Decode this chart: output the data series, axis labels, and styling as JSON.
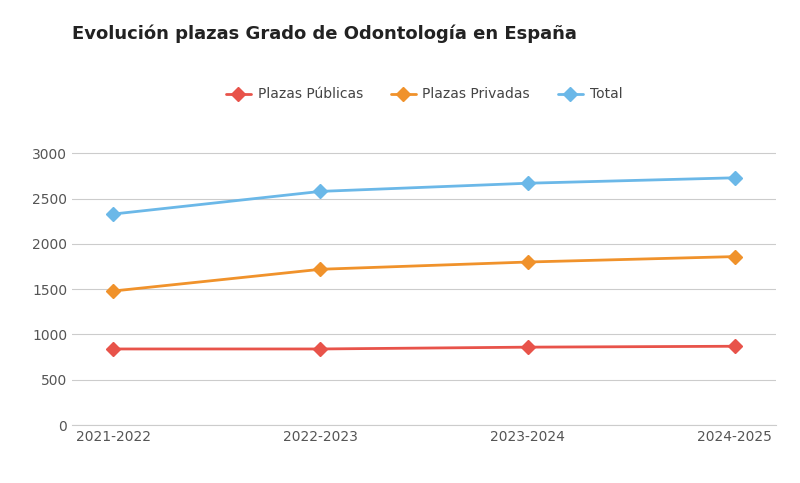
{
  "title": "Evolución plazas Grado de Odontología en España",
  "categories": [
    "2021-2022",
    "2022-2023",
    "2023-2024",
    "2024-2025"
  ],
  "series": [
    {
      "name": "Plazas Públicas",
      "values": [
        840,
        840,
        860,
        870
      ],
      "color": "#e8534a",
      "linewidth": 2.0
    },
    {
      "name": "Plazas Privadas",
      "values": [
        1480,
        1720,
        1800,
        1860
      ],
      "color": "#f0922b",
      "linewidth": 2.0
    },
    {
      "name": "Total",
      "values": [
        2330,
        2580,
        2670,
        2730
      ],
      "color": "#6bb8e8",
      "linewidth": 2.0
    }
  ],
  "ylim": [
    0,
    3200
  ],
  "yticks": [
    0,
    500,
    1000,
    1500,
    2000,
    2500,
    3000
  ],
  "background_color": "#ffffff",
  "grid_color": "#cccccc",
  "title_fontsize": 13,
  "legend_fontsize": 10,
  "tick_fontsize": 10,
  "marker_size": 7,
  "marker": "D"
}
